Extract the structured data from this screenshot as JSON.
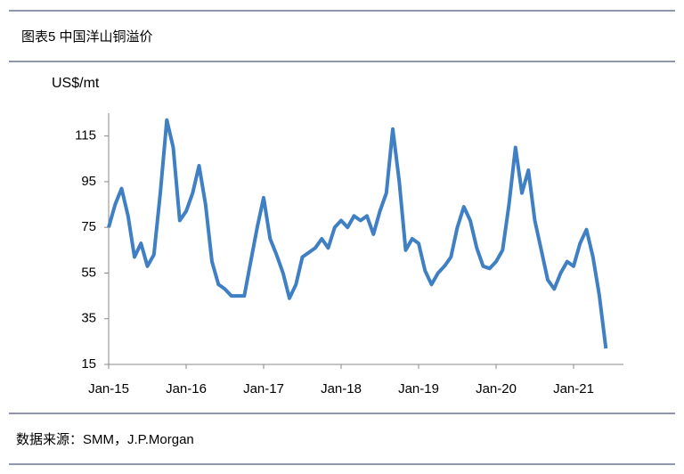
{
  "chart_data": {
    "type": "line",
    "title": "图表5  中国洋山铜溢价",
    "y_label": "US$/mt",
    "source": "数据来源：SMM，J.P.Morgan",
    "x": [
      "2015-01",
      "2015-02",
      "2015-03",
      "2015-04",
      "2015-05",
      "2015-06",
      "2015-07",
      "2015-08",
      "2015-09",
      "2015-10",
      "2015-11",
      "2015-12",
      "2016-01",
      "2016-02",
      "2016-03",
      "2016-04",
      "2016-05",
      "2016-06",
      "2016-07",
      "2016-08",
      "2016-09",
      "2016-10",
      "2016-11",
      "2016-12",
      "2017-01",
      "2017-02",
      "2017-03",
      "2017-04",
      "2017-05",
      "2017-06",
      "2017-07",
      "2017-08",
      "2017-09",
      "2017-10",
      "2017-11",
      "2017-12",
      "2018-01",
      "2018-02",
      "2018-03",
      "2018-04",
      "2018-05",
      "2018-06",
      "2018-07",
      "2018-08",
      "2018-09",
      "2018-10",
      "2018-11",
      "2018-12",
      "2019-01",
      "2019-02",
      "2019-03",
      "2019-04",
      "2019-05",
      "2019-06",
      "2019-07",
      "2019-08",
      "2019-09",
      "2019-10",
      "2019-11",
      "2019-12",
      "2020-01",
      "2020-02",
      "2020-03",
      "2020-04",
      "2020-05",
      "2020-06",
      "2020-07",
      "2020-08",
      "2020-09",
      "2020-10",
      "2020-11",
      "2020-12",
      "2021-01",
      "2021-02",
      "2021-03",
      "2021-04",
      "2021-05",
      "2021-06"
    ],
    "series": [
      {
        "name": "洋山铜溢价",
        "color": "#3f7fc4",
        "values": [
          75,
          85,
          92,
          80,
          62,
          68,
          58,
          63,
          90,
          122,
          110,
          78,
          82,
          90,
          102,
          85,
          60,
          50,
          48,
          45,
          45,
          45,
          60,
          75,
          88,
          70,
          63,
          55,
          44,
          50,
          62,
          64,
          66,
          70,
          66,
          75,
          78,
          75,
          80,
          78,
          80,
          72,
          82,
          90,
          118,
          95,
          65,
          70,
          68,
          56,
          50,
          55,
          58,
          62,
          75,
          84,
          78,
          66,
          58,
          57,
          60,
          65,
          85,
          110,
          90,
          100,
          78,
          65,
          52,
          48,
          55,
          60,
          58,
          68,
          74,
          62,
          45,
          22
        ]
      }
    ],
    "xticks": [
      {
        "value": "2015-01",
        "label": "Jan-15"
      },
      {
        "value": "2016-01",
        "label": "Jan-16"
      },
      {
        "value": "2017-01",
        "label": "Jan-17"
      },
      {
        "value": "2018-01",
        "label": "Jan-18"
      },
      {
        "value": "2019-01",
        "label": "Jan-19"
      },
      {
        "value": "2020-01",
        "label": "Jan-20"
      },
      {
        "value": "2021-01",
        "label": "Jan-21"
      }
    ],
    "ylim": [
      15,
      125
    ],
    "yticks": [
      15,
      35,
      55,
      75,
      95,
      115
    ]
  }
}
